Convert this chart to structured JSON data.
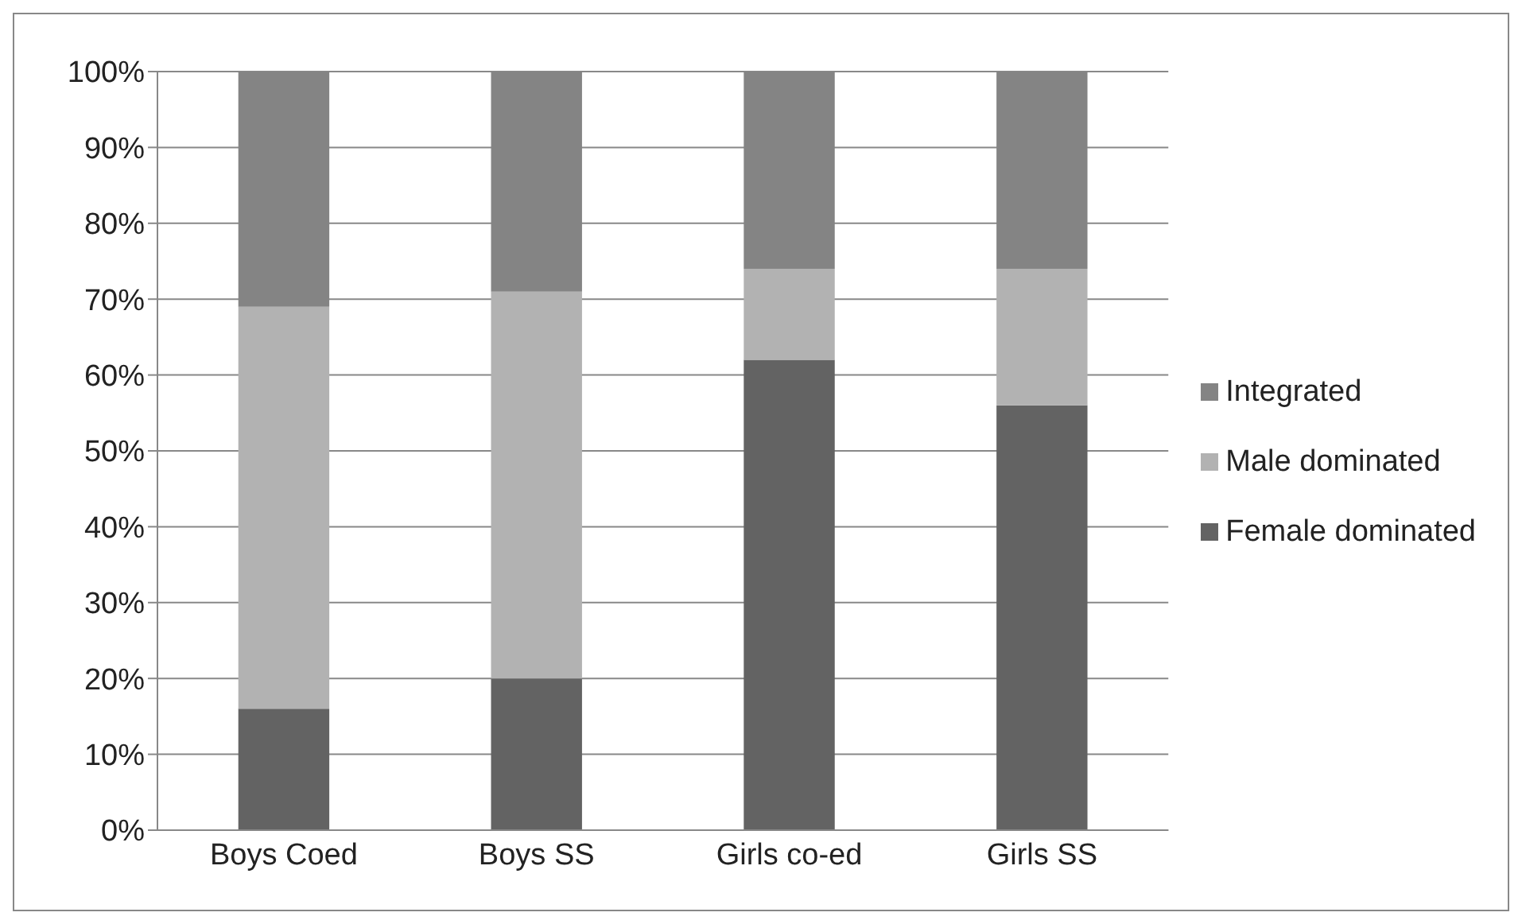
{
  "chart_data": {
    "type": "bar",
    "stacked": true,
    "categories": [
      "Boys Coed",
      "Boys SS",
      "Girls co-ed",
      "Girls SS"
    ],
    "series": [
      {
        "name": "Female dominated",
        "color": "#636363",
        "values": [
          16,
          20,
          62,
          56
        ]
      },
      {
        "name": "Male dominated",
        "color": "#b2b2b2",
        "values": [
          53,
          51,
          12,
          18
        ]
      },
      {
        "name": "Integrated",
        "color": "#848484",
        "values": [
          31,
          29,
          26,
          26
        ]
      }
    ],
    "ylim": [
      0,
      100
    ],
    "yticks": [
      {
        "value": 0,
        "label": "0%"
      },
      {
        "value": 10,
        "label": "10%"
      },
      {
        "value": 20,
        "label": "20%"
      },
      {
        "value": 30,
        "label": "30%"
      },
      {
        "value": 40,
        "label": "40%"
      },
      {
        "value": 50,
        "label": "50%"
      },
      {
        "value": 60,
        "label": "60%"
      },
      {
        "value": 70,
        "label": "70%"
      },
      {
        "value": 80,
        "label": "80%"
      },
      {
        "value": 90,
        "label": "90%"
      },
      {
        "value": 100,
        "label": "100%"
      }
    ],
    "grid": "y",
    "legend": "right"
  }
}
